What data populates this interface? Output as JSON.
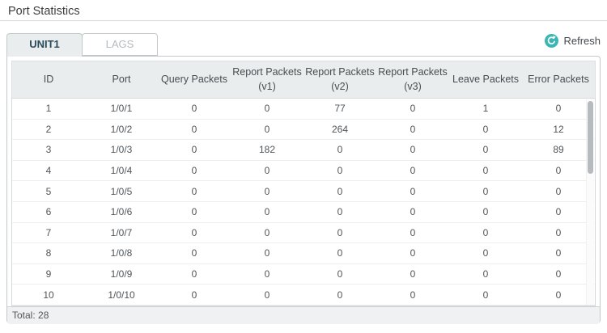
{
  "page": {
    "title": "Port Statistics"
  },
  "tabs": [
    {
      "label": "UNIT1",
      "active": true
    },
    {
      "label": "LAGS",
      "active": false
    }
  ],
  "toolbar": {
    "refresh_label": "Refresh"
  },
  "table": {
    "columns": [
      {
        "label": "ID"
      },
      {
        "label": "Port"
      },
      {
        "label": "Query Packets"
      },
      {
        "label": "Report Packets",
        "sub": "(v1)"
      },
      {
        "label": "Report Packets",
        "sub": "(v2)"
      },
      {
        "label": "Report Packets",
        "sub": "(v3)"
      },
      {
        "label": "Leave Packets"
      },
      {
        "label": "Error Packets"
      }
    ],
    "rows": [
      [
        "1",
        "1/0/1",
        "0",
        "0",
        "77",
        "0",
        "1",
        "0"
      ],
      [
        "2",
        "1/0/2",
        "0",
        "0",
        "264",
        "0",
        "0",
        "12"
      ],
      [
        "3",
        "1/0/3",
        "0",
        "182",
        "0",
        "0",
        "0",
        "89"
      ],
      [
        "4",
        "1/0/4",
        "0",
        "0",
        "0",
        "0",
        "0",
        "0"
      ],
      [
        "5",
        "1/0/5",
        "0",
        "0",
        "0",
        "0",
        "0",
        "0"
      ],
      [
        "6",
        "1/0/6",
        "0",
        "0",
        "0",
        "0",
        "0",
        "0"
      ],
      [
        "7",
        "1/0/7",
        "0",
        "0",
        "0",
        "0",
        "0",
        "0"
      ],
      [
        "8",
        "1/0/8",
        "0",
        "0",
        "0",
        "0",
        "0",
        "0"
      ],
      [
        "9",
        "1/0/9",
        "0",
        "0",
        "0",
        "0",
        "0",
        "0"
      ],
      [
        "10",
        "1/0/10",
        "0",
        "0",
        "0",
        "0",
        "0",
        "0"
      ]
    ],
    "total_label": "Total: 28"
  },
  "colors": {
    "accent_teal": "#3ab7b5",
    "active_tab_text": "#2a4a5c",
    "header_bg": "#e9edee",
    "panel_border": "#c3c8cb"
  }
}
